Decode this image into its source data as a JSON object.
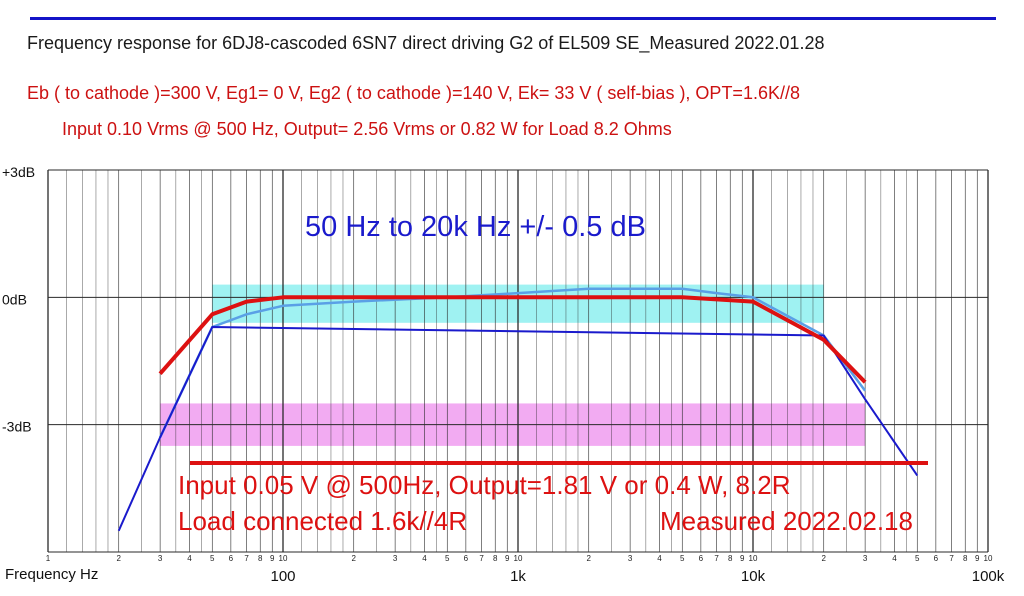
{
  "header": {
    "title": "Frequency response for 6DJ8-cascoded 6SN7 direct driving G2 of EL509 SE_Measured 2022.01.28",
    "conditions": "Eb ( to cathode )=300 V, Eg1= 0 V, Eg2 ( to cathode )=140 V, Ek= 33 V ( self-bias ), OPT=1.6K//8",
    "first_measurement": "Input 0.10 Vrms @ 500 Hz, Output= 2.56 Vrms or 0.82 W for Load 8.2 Ohms"
  },
  "annotations": {
    "band": "50 Hz to 20k Hz   +/- 0.5 dB",
    "second_line1": "Input 0.05 V @ 500Hz, Output=1.81 V or 0.4 W, 8.2R",
    "second_line2": "Load connected 1.6k//4R",
    "second_date": "Measured 2022.02.18"
  },
  "colors": {
    "title": "#1a1a1a",
    "red": "#dd1111",
    "blue": "#1a1acc",
    "light_blue": "#5aa0e6",
    "cyan_band": "#8ef0f0",
    "magenta_band": "#f09cf0",
    "grid": "#2a2a2a"
  },
  "chart_data": {
    "type": "line",
    "xlabel": "Frequency  Hz",
    "xscale": "log",
    "xlim": [
      10,
      100000
    ],
    "ylim": [
      -6,
      3
    ],
    "grid": true,
    "x_tick_labels": [
      {
        "x": 100,
        "label": "100"
      },
      {
        "x": 1000,
        "label": "1k"
      },
      {
        "x": 10000,
        "label": "10k"
      },
      {
        "x": 100000,
        "label": "100k"
      }
    ],
    "y_tick_labels": [
      {
        "y": 3,
        "label": "+3dB"
      },
      {
        "y": 0,
        "label": "0dB"
      },
      {
        "y": -3,
        "label": "-3dB"
      }
    ],
    "bands": [
      {
        "x": [
          50,
          20000
        ],
        "y": [
          -0.6,
          0.3
        ],
        "color": "#8ef0f0"
      },
      {
        "x": [
          30,
          30000
        ],
        "y": [
          -3.5,
          -2.5
        ],
        "color": "#f09cf0"
      }
    ],
    "series": [
      {
        "color": "#dd1111",
        "x": [
          30,
          50,
          70,
          100,
          200,
          500,
          1000,
          2000,
          5000,
          10000,
          20000,
          30000
        ],
        "y": [
          -1.8,
          -0.4,
          -0.1,
          0.0,
          0.0,
          0.0,
          0.0,
          0.0,
          0.0,
          -0.1,
          -1.0,
          -2.0
        ]
      },
      {
        "color": "#5aa0e6",
        "x": [
          30,
          50,
          70,
          100,
          200,
          500,
          1000,
          2000,
          5000,
          7000,
          10000,
          20000,
          30000
        ],
        "y": [
          -3.3,
          -0.7,
          -0.4,
          -0.2,
          -0.1,
          0.0,
          0.1,
          0.2,
          0.2,
          0.1,
          0.0,
          -0.9,
          -2.2
        ]
      },
      {
        "color": "#1a1acc",
        "x": [
          20,
          30,
          50,
          20000,
          30000,
          50000
        ],
        "y": [
          -5.5,
          -3.3,
          -0.7,
          -0.9,
          -2.4,
          -4.2
        ]
      }
    ]
  }
}
